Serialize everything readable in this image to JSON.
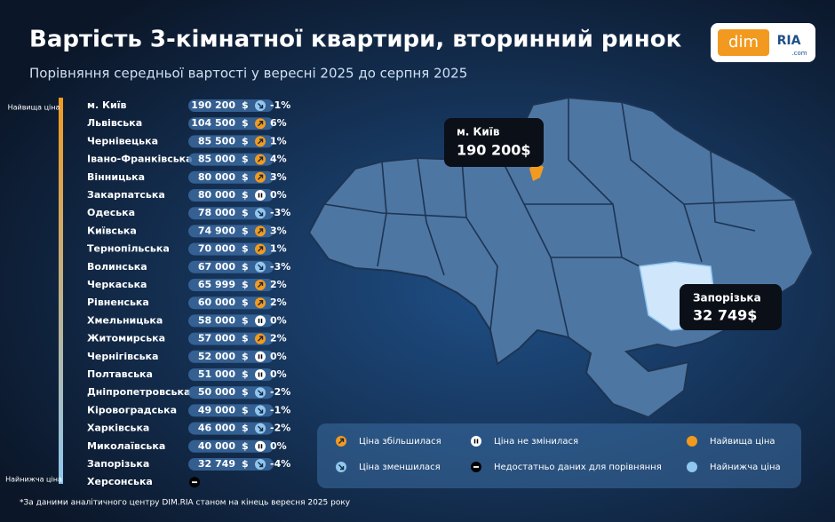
{
  "header": {
    "title": "Вартість 3-кімнатної квартири, вторинний ринок",
    "subtitle": "Порівняння середньої вартості у вересні 2025 до серпня 2025"
  },
  "logo": {
    "left": "dim",
    "right": "RIA",
    "domain": ".com"
  },
  "scale": {
    "top": "Найвища ціна",
    "bottom": "Найнижча ціна"
  },
  "currency": "$",
  "table": {
    "rows": [
      [
        "м. Київ",
        "190 200",
        "down",
        "-1%"
      ],
      [
        "Львівська",
        "104 500",
        "up",
        "6%"
      ],
      [
        "Чернівецька",
        "85 500",
        "up",
        "1%"
      ],
      [
        "Івано-Франківська",
        "85 000",
        "up",
        "4%"
      ],
      [
        "Вінницька",
        "80 000",
        "up",
        "3%"
      ],
      [
        "Закарпатська",
        "80 000",
        "flat",
        "0%"
      ],
      [
        "Одеська",
        "78 000",
        "down",
        "-3%"
      ],
      [
        "Київська",
        "74 900",
        "up",
        "3%"
      ],
      [
        "Тернопільська",
        "70 000",
        "up",
        "1%"
      ],
      [
        "Волинська",
        "67 000",
        "down",
        "-3%"
      ],
      [
        "Черкаська",
        "65 999",
        "up",
        "2%"
      ],
      [
        "Рівненська",
        "60 000",
        "up",
        "2%"
      ],
      [
        "Хмельницька",
        "58 000",
        "flat",
        "0%"
      ],
      [
        "Житомирська",
        "57 000",
        "up",
        "2%"
      ],
      [
        "Чернігівська",
        "52 000",
        "flat",
        "0%"
      ],
      [
        "Полтавська",
        "51 000",
        "flat",
        "0%"
      ],
      [
        "Дніпропетровська",
        "50 000",
        "down",
        "-2%"
      ],
      [
        "Кіровоградська",
        "49 000",
        "down",
        "-1%"
      ],
      [
        "Харківська",
        "46 000",
        "down",
        "-2%"
      ],
      [
        "Миколаївська",
        "40 000",
        "flat",
        "0%"
      ],
      [
        "Запорізька",
        "32 749",
        "down",
        "-4%"
      ],
      [
        "Херсонська",
        null,
        "none",
        null
      ]
    ]
  },
  "map": {
    "callouts": [
      {
        "name": "м. Київ",
        "value": "190 200$"
      },
      {
        "name": "Запорізька",
        "value": "32 749$"
      }
    ]
  },
  "legend": [
    {
      "icon": "up",
      "label": "Ціна збільшилася"
    },
    {
      "icon": "flat",
      "label": "Ціна не змінилася"
    },
    {
      "icon": "max",
      "label": "Найвища ціна"
    },
    {
      "icon": "down",
      "label": "Ціна зменшилася"
    },
    {
      "icon": "none",
      "label": "Недостатньо даних для порівняння"
    },
    {
      "icon": "min",
      "label": "Найнижча ціна"
    }
  ],
  "footnote": "*За даними аналітичного центру DIM.RIA станом на кінець вересня 2025 року"
}
